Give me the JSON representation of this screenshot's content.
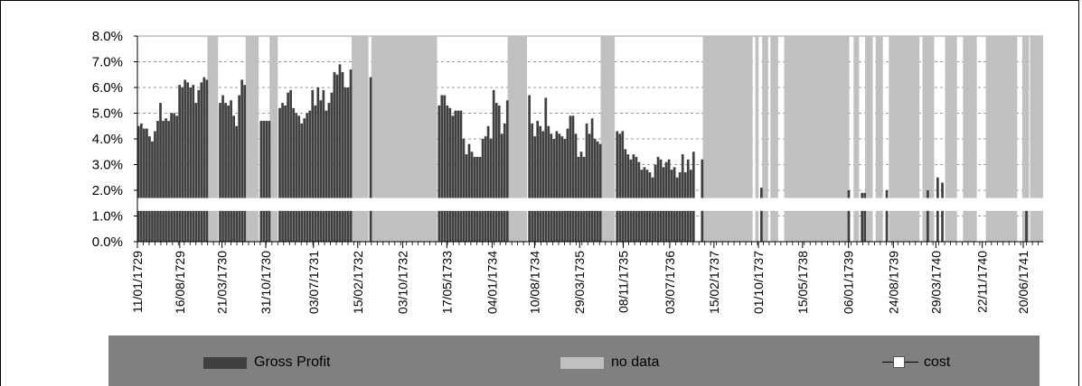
{
  "chart_data": {
    "type": "bar",
    "x_axis_type": "date",
    "x_range": [
      "1729-01-11",
      "1741-09-30"
    ],
    "ylim": [
      0,
      8
    ],
    "y_unit": "%",
    "y_ticks": [
      "0.0%",
      "1.0%",
      "2.0%",
      "3.0%",
      "4.0%",
      "5.0%",
      "6.0%",
      "7.0%",
      "8.0%"
    ],
    "x_tick_labels": [
      "11/01/1729",
      "16/08/1729",
      "21/03/1730",
      "31/10/1730",
      "03/07/1731",
      "15/02/1732",
      "03/10/1732",
      "17/05/1733",
      "04/01/1734",
      "10/08/1734",
      "29/03/1735",
      "08/11/1735",
      "03/07/1736",
      "15/02/1737",
      "01/10/1737",
      "15/05/1738",
      "06/01/1739",
      "24/08/1739",
      "29/03/1740",
      "22/11/1740",
      "20/06/1741"
    ],
    "grid": "horizontal-dashed",
    "axis_break_percent": [
      1.2,
      1.7
    ],
    "legend_position": "bottom",
    "series": [
      {
        "name": "Gross Profit",
        "color": "#404040",
        "points": [
          [
            "1729-01-11",
            4.5
          ],
          [
            "1729-01-25",
            4.6
          ],
          [
            "1729-02-08",
            4.4
          ],
          [
            "1729-02-22",
            4.4
          ],
          [
            "1729-03-08",
            4.1
          ],
          [
            "1729-03-22",
            3.9
          ],
          [
            "1729-04-05",
            4.3
          ],
          [
            "1729-04-19",
            4.7
          ],
          [
            "1729-05-03",
            5.4
          ],
          [
            "1729-05-17",
            4.7
          ],
          [
            "1729-05-31",
            4.8
          ],
          [
            "1729-06-14",
            4.7
          ],
          [
            "1729-06-28",
            5.0
          ],
          [
            "1729-07-12",
            5.0
          ],
          [
            "1729-07-26",
            4.9
          ],
          [
            "1729-08-09",
            6.1
          ],
          [
            "1729-08-23",
            6.0
          ],
          [
            "1729-09-06",
            6.3
          ],
          [
            "1729-09-20",
            6.2
          ],
          [
            "1729-10-04",
            6.0
          ],
          [
            "1729-10-18",
            6.1
          ],
          [
            "1729-11-01",
            5.4
          ],
          [
            "1729-11-15",
            5.9
          ],
          [
            "1729-11-29",
            6.2
          ],
          [
            "1729-12-13",
            6.4
          ],
          [
            "1729-12-27",
            6.3
          ],
          [
            "1730-03-05",
            5.4
          ],
          [
            "1730-03-19",
            5.7
          ],
          [
            "1730-04-02",
            5.4
          ],
          [
            "1730-04-16",
            5.3
          ],
          [
            "1730-04-30",
            5.5
          ],
          [
            "1730-05-14",
            4.9
          ],
          [
            "1730-05-28",
            4.5
          ],
          [
            "1730-06-11",
            5.7
          ],
          [
            "1730-06-25",
            6.3
          ],
          [
            "1730-07-09",
            6.1
          ],
          [
            "1730-10-01",
            4.7
          ],
          [
            "1730-10-15",
            4.7
          ],
          [
            "1730-10-29",
            4.7
          ],
          [
            "1730-11-12",
            4.7
          ],
          [
            "1731-01-05",
            5.2
          ],
          [
            "1731-01-19",
            5.4
          ],
          [
            "1731-02-02",
            5.3
          ],
          [
            "1731-02-16",
            5.8
          ],
          [
            "1731-03-02",
            5.9
          ],
          [
            "1731-03-16",
            5.2
          ],
          [
            "1731-03-30",
            5.0
          ],
          [
            "1731-04-13",
            4.9
          ],
          [
            "1731-04-27",
            4.6
          ],
          [
            "1731-05-11",
            4.8
          ],
          [
            "1731-05-25",
            5.0
          ],
          [
            "1731-06-08",
            5.1
          ],
          [
            "1731-06-22",
            5.9
          ],
          [
            "1731-07-06",
            5.3
          ],
          [
            "1731-07-20",
            6.0
          ],
          [
            "1731-08-03",
            5.5
          ],
          [
            "1731-08-17",
            5.9
          ],
          [
            "1731-08-31",
            5.1
          ],
          [
            "1731-09-14",
            5.4
          ],
          [
            "1731-09-28",
            5.8
          ],
          [
            "1731-10-12",
            6.6
          ],
          [
            "1731-10-26",
            6.5
          ],
          [
            "1731-11-09",
            6.9
          ],
          [
            "1731-11-23",
            6.6
          ],
          [
            "1731-12-07",
            6.0
          ],
          [
            "1731-12-21",
            6.0
          ],
          [
            "1732-01-04",
            6.7
          ],
          [
            "1732-04-15",
            6.4
          ],
          [
            "1733-04-01",
            5.3
          ],
          [
            "1733-04-15",
            5.7
          ],
          [
            "1733-04-29",
            5.7
          ],
          [
            "1733-05-13",
            5.3
          ],
          [
            "1733-05-27",
            5.2
          ],
          [
            "1733-06-10",
            4.9
          ],
          [
            "1733-06-24",
            5.1
          ],
          [
            "1733-07-08",
            5.1
          ],
          [
            "1733-07-22",
            5.1
          ],
          [
            "1733-08-05",
            4.0
          ],
          [
            "1733-08-19",
            3.4
          ],
          [
            "1733-09-02",
            3.8
          ],
          [
            "1733-09-16",
            3.5
          ],
          [
            "1733-09-30",
            3.3
          ],
          [
            "1733-10-14",
            3.3
          ],
          [
            "1733-10-28",
            3.3
          ],
          [
            "1733-11-11",
            4.0
          ],
          [
            "1733-11-25",
            4.1
          ],
          [
            "1733-12-09",
            4.5
          ],
          [
            "1733-12-23",
            4.0
          ],
          [
            "1734-01-06",
            5.9
          ],
          [
            "1734-01-20",
            5.4
          ],
          [
            "1734-02-03",
            5.3
          ],
          [
            "1734-02-17",
            4.2
          ],
          [
            "1734-03-03",
            4.6
          ],
          [
            "1734-03-17",
            5.5
          ],
          [
            "1734-07-08",
            5.7
          ],
          [
            "1734-07-22",
            4.6
          ],
          [
            "1734-08-05",
            4.1
          ],
          [
            "1734-08-19",
            4.7
          ],
          [
            "1734-09-02",
            4.5
          ],
          [
            "1734-09-16",
            4.3
          ],
          [
            "1734-09-30",
            5.6
          ],
          [
            "1734-10-14",
            4.5
          ],
          [
            "1734-10-28",
            4.2
          ],
          [
            "1734-11-11",
            4.0
          ],
          [
            "1734-11-25",
            4.3
          ],
          [
            "1734-12-09",
            4.2
          ],
          [
            "1734-12-23",
            4.1
          ],
          [
            "1735-01-06",
            4.0
          ],
          [
            "1735-01-20",
            4.4
          ],
          [
            "1735-02-03",
            4.9
          ],
          [
            "1735-02-17",
            4.9
          ],
          [
            "1735-03-03",
            4.2
          ],
          [
            "1735-03-17",
            3.3
          ],
          [
            "1735-03-31",
            3.5
          ],
          [
            "1735-04-14",
            3.3
          ],
          [
            "1735-04-28",
            4.6
          ],
          [
            "1735-05-12",
            4.2
          ],
          [
            "1735-05-26",
            4.8
          ],
          [
            "1735-06-09",
            4.0
          ],
          [
            "1735-06-23",
            3.9
          ],
          [
            "1735-07-07",
            3.8
          ],
          [
            "1735-10-01",
            4.3
          ],
          [
            "1735-10-15",
            4.2
          ],
          [
            "1735-10-29",
            4.3
          ],
          [
            "1735-11-12",
            3.6
          ],
          [
            "1735-11-26",
            3.4
          ],
          [
            "1735-12-10",
            3.2
          ],
          [
            "1735-12-24",
            3.4
          ],
          [
            "1736-01-07",
            3.3
          ],
          [
            "1736-01-21",
            3.1
          ],
          [
            "1736-02-04",
            2.8
          ],
          [
            "1736-02-18",
            2.9
          ],
          [
            "1736-03-03",
            2.8
          ],
          [
            "1736-03-17",
            2.7
          ],
          [
            "1736-03-31",
            2.5
          ],
          [
            "1736-04-14",
            3.0
          ],
          [
            "1736-04-28",
            3.3
          ],
          [
            "1736-05-12",
            3.2
          ],
          [
            "1736-05-26",
            2.9
          ],
          [
            "1736-06-09",
            3.1
          ],
          [
            "1736-06-23",
            3.2
          ],
          [
            "1736-07-07",
            2.8
          ],
          [
            "1736-07-21",
            2.9
          ],
          [
            "1736-08-04",
            2.5
          ],
          [
            "1736-08-18",
            2.7
          ],
          [
            "1736-09-01",
            3.4
          ],
          [
            "1736-09-15",
            2.7
          ],
          [
            "1736-09-29",
            3.2
          ],
          [
            "1736-10-13",
            2.8
          ],
          [
            "1736-10-27",
            3.5
          ],
          [
            "1736-12-10",
            3.2
          ],
          [
            "1737-10-10",
            2.1
          ],
          [
            "1739-01-01",
            2.0
          ],
          [
            "1739-03-10",
            1.9
          ],
          [
            "1739-03-24",
            1.9
          ],
          [
            "1739-07-15",
            2.0
          ],
          [
            "1740-02-10",
            2.0
          ],
          [
            "1740-04-01",
            2.5
          ],
          [
            "1740-04-25",
            2.3
          ],
          [
            "1741-06-30",
            1.2
          ]
        ]
      },
      {
        "name": "no data",
        "color": "#c0c0c0",
        "periods": [
          [
            "1730-01-05",
            "1730-03-01"
          ],
          [
            "1730-07-20",
            "1730-09-25"
          ],
          [
            "1730-11-20",
            "1731-01-01"
          ],
          [
            "1732-01-15",
            "1732-04-10"
          ],
          [
            "1732-04-25",
            "1733-03-28"
          ],
          [
            "1734-03-25",
            "1734-07-02"
          ],
          [
            "1735-07-15",
            "1735-09-25"
          ],
          [
            "1736-12-20",
            "1737-09-01"
          ],
          [
            "1737-09-15",
            "1737-10-02"
          ],
          [
            "1737-10-20",
            "1737-11-20"
          ],
          [
            "1737-12-01",
            "1738-01-10"
          ],
          [
            "1738-02-10",
            "1739-01-10"
          ],
          [
            "1739-02-01",
            "1739-03-01"
          ],
          [
            "1739-04-01",
            "1739-05-10"
          ],
          [
            "1739-05-25",
            "1739-07-01"
          ],
          [
            "1739-08-01",
            "1740-01-05"
          ],
          [
            "1740-01-20",
            "1740-03-20"
          ],
          [
            "1740-05-15",
            "1740-07-15"
          ],
          [
            "1740-08-15",
            "1740-10-25"
          ],
          [
            "1740-12-10",
            "1741-05-20"
          ],
          [
            "1741-06-15",
            "1741-07-20"
          ],
          [
            "1741-07-25",
            "1741-09-30"
          ]
        ]
      },
      {
        "name": "cost",
        "color": "#ffffff",
        "points": []
      }
    ]
  },
  "legend": {
    "gross_profit": "Gross Profit",
    "no_data": "no data",
    "cost": "cost"
  }
}
